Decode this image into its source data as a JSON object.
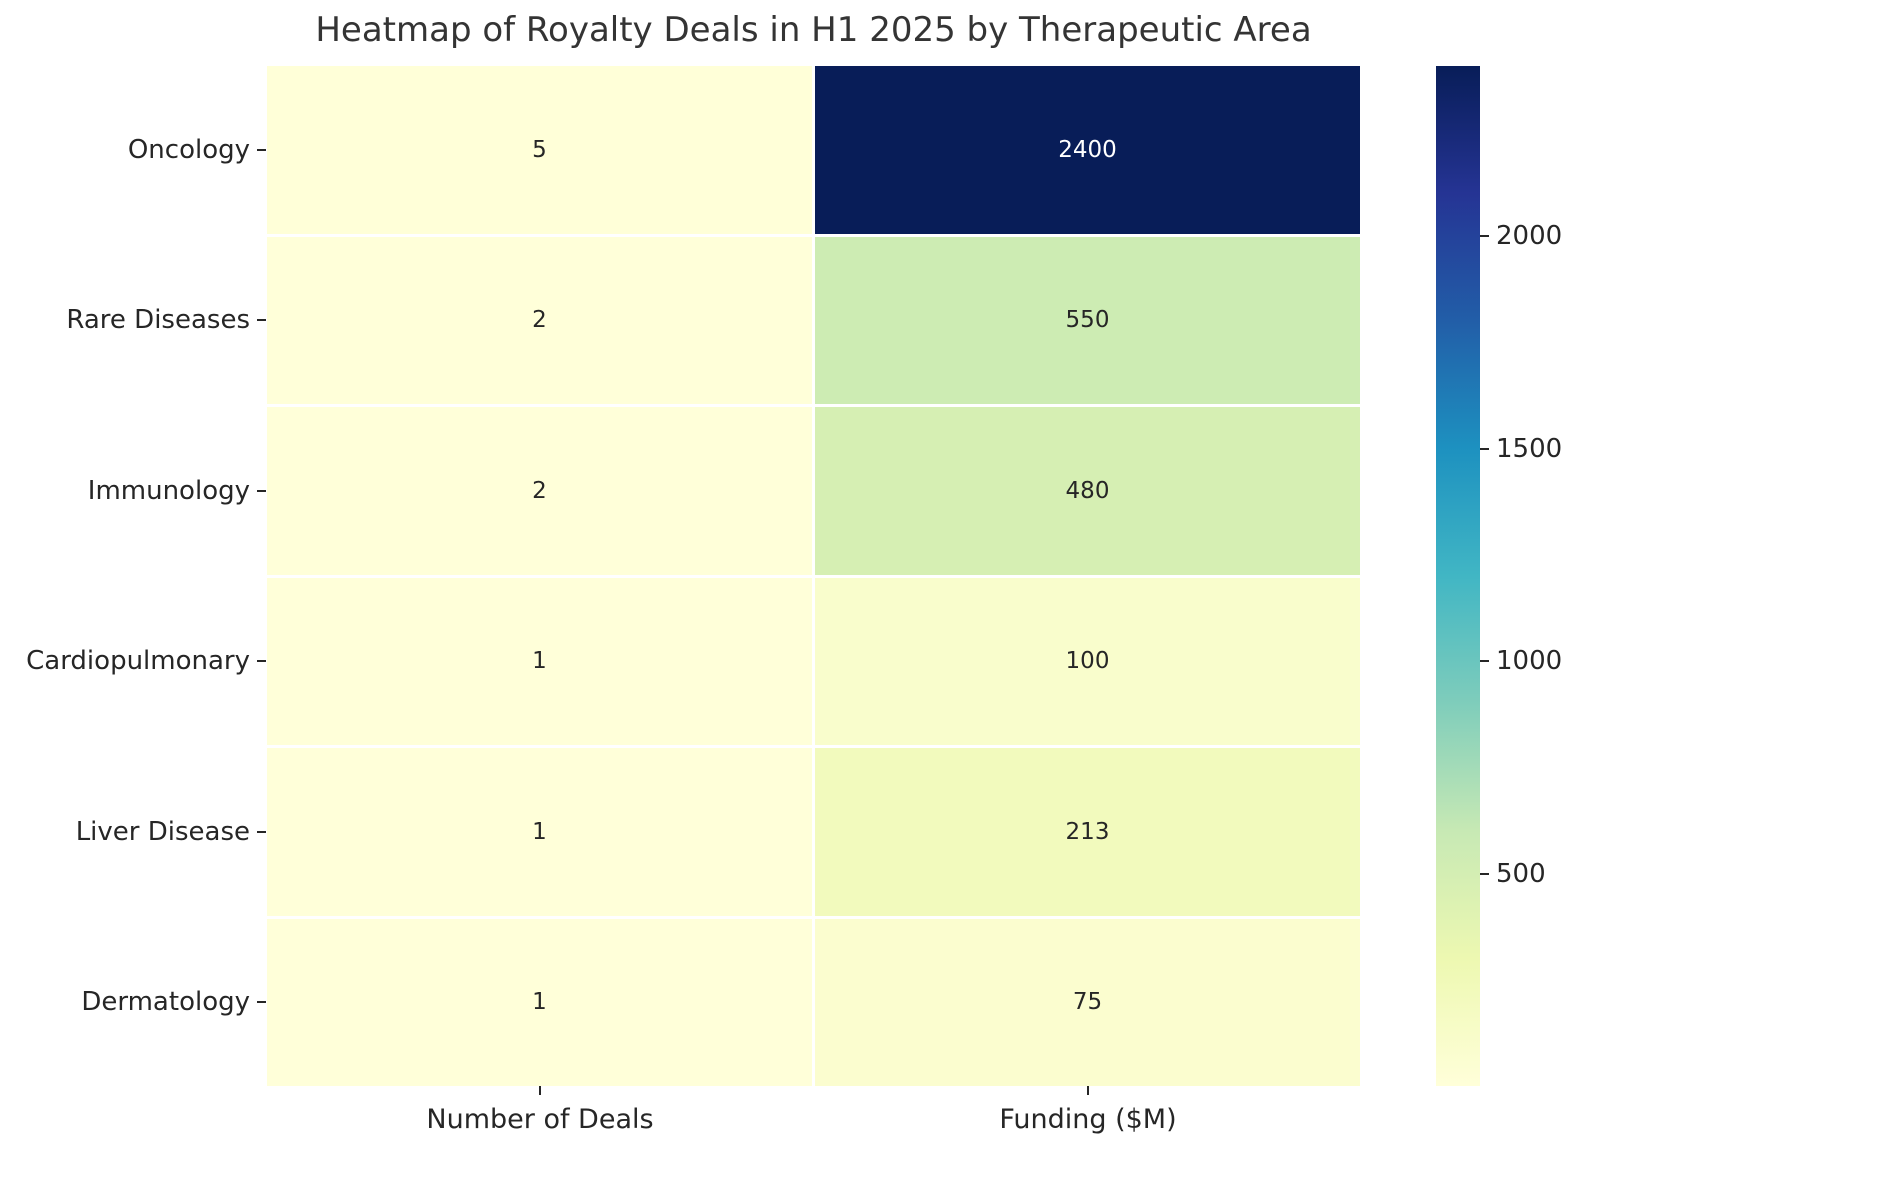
{
  "chart_data": {
    "type": "heatmap",
    "title": "Heatmap of Royalty Deals in H1 2025 by Therapeutic Area",
    "rows": [
      "Oncology",
      "Rare Diseases",
      "Immunology",
      "Cardiopulmonary",
      "Liver Disease",
      "Dermatology"
    ],
    "columns": [
      "Number of Deals",
      "Funding ($M)"
    ],
    "values": [
      [
        5,
        2400
      ],
      [
        2,
        550
      ],
      [
        2,
        480
      ],
      [
        1,
        100
      ],
      [
        1,
        213
      ],
      [
        1,
        75
      ]
    ],
    "colormap": "YlGnBu",
    "vmin": 1,
    "vmax": 2400,
    "colorbar_ticks": [
      500,
      1000,
      1500,
      2000
    ],
    "colorbar_position": "right",
    "annotated": true,
    "grid_line_color": "#ffffff"
  },
  "colors": {
    "background": "#ffffff",
    "title": "#343434",
    "tick_label": "#262626",
    "annotation_dark": "#262626",
    "annotation_light": "#ffffff"
  }
}
